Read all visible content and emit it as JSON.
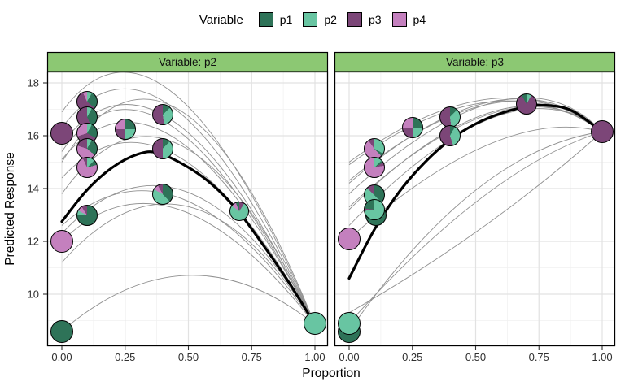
{
  "legend": {
    "title": "Variable",
    "items": [
      {
        "label": "p1",
        "color": "#2E7358"
      },
      {
        "label": "p2",
        "color": "#68C5A2"
      },
      {
        "label": "p3",
        "color": "#7C4678"
      },
      {
        "label": "p4",
        "color": "#C480BE"
      }
    ]
  },
  "facets": [
    {
      "label": "Variable: p2"
    },
    {
      "label": "Variable: p3"
    }
  ],
  "axes": {
    "x_title": "Proportion",
    "y_title": "Predicted Response",
    "x_ticks": [
      "0.00",
      "0.25",
      "0.50",
      "0.75",
      "1.00"
    ],
    "y_ticks": [
      "18",
      "16",
      "14",
      "12",
      "10"
    ]
  },
  "colors": {
    "strip_fill": "#8CC873",
    "grid_major": "#E2E2E2",
    "grid_minor": "#F0F0F0",
    "thin_curve": "#909090",
    "thick_curve": "#000000",
    "panel_bg": "#FFFFFF"
  },
  "chart_data": {
    "type": "scatter",
    "subtype": "faceted mixture-effect plot with pie-glyph points, thin prediction traces and thick mean effect curve",
    "title": "",
    "xlabel": "Proportion",
    "ylabel": "Predicted Response",
    "x_range": [
      0,
      1
    ],
    "y_range": [
      8.0,
      18.4
    ],
    "x_tick_values": [
      0,
      0.25,
      0.5,
      0.75,
      1.0
    ],
    "y_tick_values": [
      18,
      16,
      14,
      12,
      10
    ],
    "legend_position": "top",
    "palette": {
      "p1": "#2E7358",
      "p2": "#68C5A2",
      "p3": "#7C4678",
      "p4": "#C480BE"
    },
    "panels": [
      {
        "facet": "Variable: p2",
        "thick_curve": [
          [
            0,
            12.75
          ],
          [
            0.1,
            13.95
          ],
          [
            0.2,
            14.8
          ],
          [
            0.3,
            15.3
          ],
          [
            0.38,
            15.35
          ],
          [
            0.5,
            14.8
          ],
          [
            0.6,
            14.1
          ],
          [
            0.7,
            13.1
          ],
          [
            0.8,
            11.8
          ],
          [
            0.9,
            10.4
          ],
          [
            1,
            8.85
          ]
        ],
        "thin_curves": [
          {
            "y0": 16.9,
            "xc": 0.4,
            "yc": 22.2,
            "y1": 8.85
          },
          {
            "y0": 16.3,
            "xc": 0.4,
            "yc": 21.4,
            "y1": 8.85
          },
          {
            "y0": 15.7,
            "xc": 0.4,
            "yc": 20.7,
            "y1": 8.85
          },
          {
            "y0": 15.1,
            "xc": 0.4,
            "yc": 19.8,
            "y1": 8.85
          },
          {
            "y0": 14.4,
            "xc": 0.42,
            "yc": 18.8,
            "y1": 8.85
          },
          {
            "y0": 12.6,
            "xc": 0.45,
            "yc": 16.5,
            "y1": 8.85
          },
          {
            "y0": 15.4,
            "xc": 0.37,
            "yc": 20.6,
            "y1": 8.85
          },
          {
            "y0": 15.0,
            "xc": 0.45,
            "yc": 21.9,
            "y1": 8.85
          },
          {
            "y0": 13.8,
            "xc": 0.45,
            "yc": 19.9,
            "y1": 8.85
          },
          {
            "y0": 12.3,
            "xc": 0.48,
            "yc": 17.2,
            "y1": 8.85
          },
          {
            "y0": 11.2,
            "xc": 0.5,
            "yc": 16.6,
            "y1": 8.85
          },
          {
            "y0": 8.6,
            "xc": 0.5,
            "yc": 12.7,
            "y1": 8.85
          },
          {
            "y0": 12.0,
            "xc": 0.42,
            "yc": 16.0,
            "y1": 8.85
          }
        ],
        "pies": [
          {
            "x": 0.0,
            "y": 16.1,
            "r": 14,
            "slices": [
              [
                "p3",
                1
              ]
            ]
          },
          {
            "x": 0.0,
            "y": 12.0,
            "r": 14,
            "slices": [
              [
                "p4",
                1
              ]
            ]
          },
          {
            "x": 0.0,
            "y": 8.6,
            "r": 14,
            "slices": [
              [
                "p1",
                1
              ]
            ]
          },
          {
            "x": 1.0,
            "y": 8.9,
            "r": 14,
            "slices": [
              [
                "p2",
                1
              ]
            ]
          },
          {
            "x": 0.1,
            "y": 17.3,
            "r": 13,
            "slices": [
              [
                "p2",
                0.08
              ],
              [
                "p1",
                0.28
              ],
              [
                "p3",
                0.57
              ],
              [
                "p4",
                0.07
              ]
            ]
          },
          {
            "x": 0.1,
            "y": 16.7,
            "r": 13,
            "slices": [
              [
                "p2",
                0.08
              ],
              [
                "p1",
                0.35
              ],
              [
                "p3",
                0.57
              ]
            ]
          },
          {
            "x": 0.1,
            "y": 16.1,
            "r": 13,
            "slices": [
              [
                "p2",
                0.08
              ],
              [
                "p1",
                0.25
              ],
              [
                "p3",
                0.37
              ],
              [
                "p4",
                0.3
              ]
            ]
          },
          {
            "x": 0.1,
            "y": 15.5,
            "r": 13,
            "slices": [
              [
                "p2",
                0.08
              ],
              [
                "p1",
                0.28
              ],
              [
                "p4",
                0.44
              ],
              [
                "p3",
                0.2
              ]
            ]
          },
          {
            "x": 0.1,
            "y": 14.8,
            "r": 13,
            "slices": [
              [
                "p2",
                0.13
              ],
              [
                "p1",
                0.08
              ],
              [
                "p4",
                0.72
              ],
              [
                "p3",
                0.07
              ]
            ]
          },
          {
            "x": 0.1,
            "y": 13.0,
            "r": 13,
            "slices": [
              [
                "p1",
                0.75
              ],
              [
                "p2",
                0.08
              ],
              [
                "p4",
                0.08
              ],
              [
                "p3",
                0.09
              ]
            ]
          },
          {
            "x": 0.25,
            "y": 16.25,
            "r": 13,
            "slices": [
              [
                "p1",
                0.25
              ],
              [
                "p2",
                0.25
              ],
              [
                "p3",
                0.25
              ],
              [
                "p4",
                0.25
              ]
            ]
          },
          {
            "x": 0.4,
            "y": 16.8,
            "r": 13,
            "slices": [
              [
                "p1",
                0.13
              ],
              [
                "p2",
                0.35
              ],
              [
                "p3",
                0.52
              ]
            ]
          },
          {
            "x": 0.4,
            "y": 15.5,
            "r": 13,
            "slices": [
              [
                "p1",
                0.12
              ],
              [
                "p2",
                0.38
              ],
              [
                "p3",
                0.5
              ]
            ]
          },
          {
            "x": 0.4,
            "y": 13.8,
            "r": 13,
            "slices": [
              [
                "p1",
                0.38
              ],
              [
                "p2",
                0.45
              ],
              [
                "p4",
                0.09
              ],
              [
                "p3",
                0.08
              ]
            ]
          },
          {
            "x": 0.7,
            "y": 13.15,
            "r": 12,
            "slices": [
              [
                "p3",
                0.09
              ],
              [
                "p2",
                0.76
              ],
              [
                "p4",
                0.09
              ],
              [
                "p1",
                0.06
              ]
            ]
          }
        ]
      },
      {
        "facet": "Variable: p3",
        "thick_curve": [
          [
            0,
            10.6
          ],
          [
            0.1,
            12.45
          ],
          [
            0.2,
            13.9
          ],
          [
            0.3,
            15.0
          ],
          [
            0.4,
            15.85
          ],
          [
            0.5,
            16.45
          ],
          [
            0.6,
            16.85
          ],
          [
            0.7,
            17.1
          ],
          [
            0.78,
            17.15
          ],
          [
            0.88,
            16.95
          ],
          [
            1,
            16.15
          ]
        ],
        "thin_curves": [
          {
            "y0": 15.0,
            "xc": 0.6,
            "yc": 19.2,
            "y1": 16.15
          },
          {
            "y0": 14.3,
            "xc": 0.62,
            "yc": 19.2,
            "y1": 16.15
          },
          {
            "y0": 13.2,
            "xc": 0.62,
            "yc": 19.1,
            "y1": 16.15
          },
          {
            "y0": 12.6,
            "xc": 0.64,
            "yc": 19.0,
            "y1": 16.15
          },
          {
            "y0": 14.9,
            "xc": 0.58,
            "yc": 19.0,
            "y1": 16.15
          },
          {
            "y0": 14.2,
            "xc": 0.62,
            "yc": 19.4,
            "y1": 16.15
          },
          {
            "y0": 13.3,
            "xc": 0.64,
            "yc": 19.0,
            "y1": 16.15
          },
          {
            "y0": 13.8,
            "xc": 0.66,
            "yc": 19.6,
            "y1": 16.15
          },
          {
            "y0": 8.6,
            "xc": 0.5,
            "yc": 15.5,
            "y1": 16.15
          },
          {
            "y0": 8.9,
            "xc": 0.55,
            "yc": 14.8,
            "y1": 16.15
          },
          {
            "y0": 12.1,
            "xc": 0.6,
            "yc": 17.2,
            "y1": 16.15
          },
          {
            "y0": 9.3,
            "xc": 0.55,
            "yc": 12.3,
            "y1": 16.15
          }
        ],
        "pies": [
          {
            "x": 0.0,
            "y": 8.6,
            "r": 14,
            "slices": [
              [
                "p1",
                1
              ]
            ]
          },
          {
            "x": 0.0,
            "y": 8.9,
            "r": 14,
            "slices": [
              [
                "p2",
                1
              ]
            ]
          },
          {
            "x": 0.0,
            "y": 12.1,
            "r": 14,
            "slices": [
              [
                "p4",
                1
              ]
            ]
          },
          {
            "x": 1.0,
            "y": 16.15,
            "r": 14,
            "slices": [
              [
                "p3",
                1
              ]
            ]
          },
          {
            "x": 0.1,
            "y": 15.5,
            "r": 13,
            "slices": [
              [
                "p2",
                0.33
              ],
              [
                "p1",
                0.05
              ],
              [
                "p4",
                0.52
              ],
              [
                "p3",
                0.1
              ]
            ]
          },
          {
            "x": 0.1,
            "y": 14.8,
            "r": 13,
            "slices": [
              [
                "p2",
                0.13
              ],
              [
                "p1",
                0.04
              ],
              [
                "p3",
                0.05
              ],
              [
                "p4",
                0.78
              ]
            ]
          },
          {
            "x": 0.1,
            "y": 13.75,
            "r": 13,
            "slices": [
              [
                "p1",
                0.38
              ],
              [
                "p2",
                0.49
              ],
              [
                "p3",
                0.13
              ]
            ]
          },
          {
            "x": 0.105,
            "y": 13.0,
            "r": 13,
            "slices": [
              [
                "p1",
                0.75
              ],
              [
                "p2",
                0.08
              ],
              [
                "p4",
                0.08
              ],
              [
                "p3",
                0.09
              ]
            ]
          },
          {
            "x": 0.1,
            "y": 13.2,
            "r": 13,
            "slices": [
              [
                "p2",
                0.73
              ],
              [
                "p3",
                0.04
              ],
              [
                "p1",
                0.23
              ]
            ]
          },
          {
            "x": 0.25,
            "y": 16.3,
            "r": 13,
            "slices": [
              [
                "p1",
                0.25
              ],
              [
                "p2",
                0.25
              ],
              [
                "p3",
                0.25
              ],
              [
                "p4",
                0.25
              ]
            ]
          },
          {
            "x": 0.4,
            "y": 16.7,
            "r": 13,
            "slices": [
              [
                "p1",
                0.12
              ],
              [
                "p2",
                0.36
              ],
              [
                "p3",
                0.52
              ]
            ]
          },
          {
            "x": 0.4,
            "y": 16.0,
            "r": 13,
            "slices": [
              [
                "p1",
                0.08
              ],
              [
                "p2",
                0.37
              ],
              [
                "p3",
                0.55
              ]
            ]
          },
          {
            "x": 0.7,
            "y": 17.2,
            "r": 13,
            "slices": [
              [
                "p2",
                0.08
              ],
              [
                "p3",
                0.84
              ],
              [
                "p1",
                0.08
              ]
            ]
          }
        ]
      }
    ]
  }
}
